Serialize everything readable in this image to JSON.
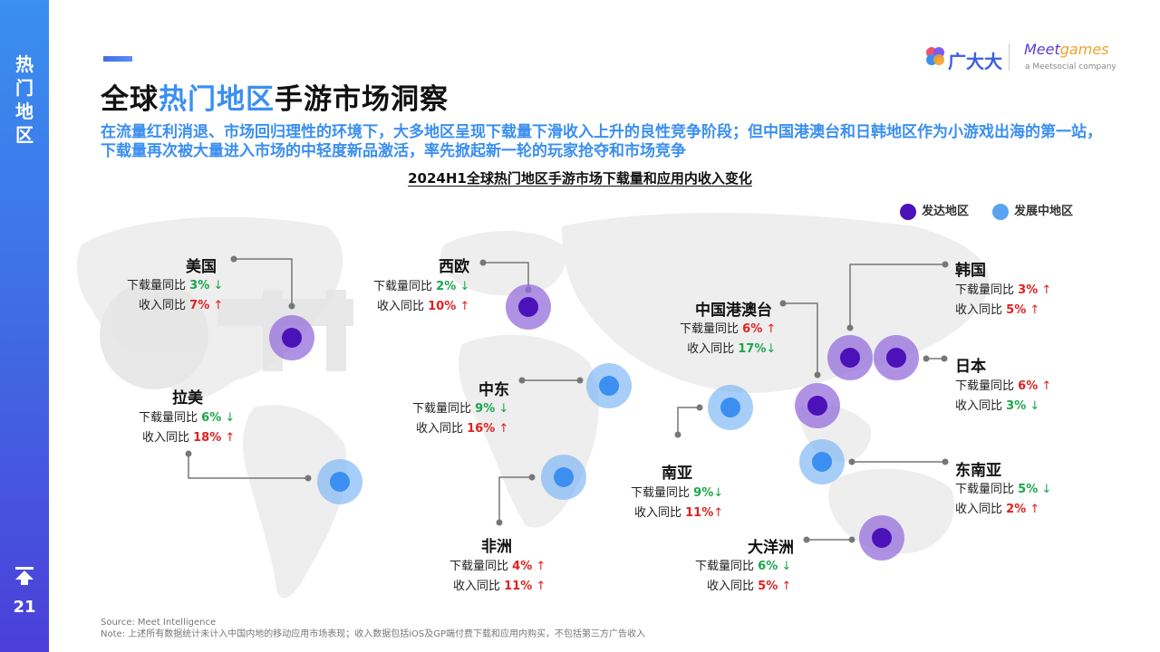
{
  "sidebar": {
    "title_chars": [
      "热",
      "门",
      "地",
      "区"
    ],
    "page_number": "21"
  },
  "header": {
    "title_part1": "全球",
    "title_highlight": "热门地区",
    "title_part2": "手游市场洞察",
    "subtitle": "在流量红利消退、市场回归理性的环境下，大多地区呈现下载量下滑收入上升的良性竞争阶段；但中国港澳台和日韩地区作为小游戏出海的第一站，下载量再次被大量进入市场的中轻度新品激活，率先掀起新一轮的玩家抢夺和市场竞争"
  },
  "logo": {
    "cn": "广大大",
    "meet_prefix": "Meet",
    "meet_suffix": "games",
    "sub": "a Meetsocial company"
  },
  "chart": {
    "title": "2024H1全球热门地区手游市场下载量和应用内收入变化"
  },
  "legend": {
    "developed": "发达地区",
    "developing": "发展中地区"
  },
  "colors": {
    "developed": "#4a12b8",
    "developing": "#3b8ff0",
    "up": "#e02020",
    "down": "#1aa64a"
  },
  "regions": {
    "usa": {
      "name": "美国",
      "dl_label": "下载量同比",
      "dl": "3%",
      "dl_arrow": "↓",
      "rev_label": "收入同比",
      "rev": "7%",
      "rev_arrow": "↑"
    },
    "weu": {
      "name": "西欧",
      "dl_label": "下载量同比",
      "dl": "2%",
      "dl_arrow": "↓",
      "rev_label": "收入同比",
      "rev": "10%",
      "rev_arrow": "↑"
    },
    "latam": {
      "name": "拉美",
      "dl_label": "下载量同比",
      "dl": "6%",
      "dl_arrow": "↓",
      "rev_label": "收入同比",
      "rev": "18%",
      "rev_arrow": "↑"
    },
    "me": {
      "name": "中东",
      "dl_label": "下载量同比",
      "dl": "9%",
      "dl_arrow": "↓",
      "rev_label": "收入同比",
      "rev": "16%",
      "rev_arrow": "↑"
    },
    "hmt": {
      "name": "中国港澳台",
      "dl_label": "下载量同比",
      "dl": "6%",
      "dl_arrow": "↑",
      "rev_label": "收入同比",
      "rev": "17%",
      "rev_arrow": "↓"
    },
    "kr": {
      "name": "韩国",
      "dl_label": "下载量同比",
      "dl": "3%",
      "dl_arrow": "↑",
      "rev_label": "收入同比",
      "rev": "5%",
      "rev_arrow": "↑"
    },
    "jp": {
      "name": "日本",
      "dl_label": "下载量同比",
      "dl": "6%",
      "dl_arrow": "↑",
      "rev_label": "收入同比",
      "rev": "3%",
      "rev_arrow": "↓"
    },
    "sa": {
      "name": "南亚",
      "dl_label": "下载量同比",
      "dl": "9%",
      "dl_arrow": "↓",
      "rev_label": "收入同比",
      "rev": "11%",
      "rev_arrow": "↑"
    },
    "africa": {
      "name": "非洲",
      "dl_label": "下载量同比",
      "dl": "4%",
      "dl_arrow": "↑",
      "rev_label": "收入同比",
      "rev": "11%",
      "rev_arrow": "↑"
    },
    "sea": {
      "name": "东南亚",
      "dl_label": "下载量同比",
      "dl": "5%",
      "dl_arrow": "↓",
      "rev_label": "收入同比",
      "rev": "2%",
      "rev_arrow": "↑"
    },
    "oce": {
      "name": "大洋洲",
      "dl_label": "下载量同比",
      "dl": "6%",
      "dl_arrow": "↓",
      "rev_label": "收入同比",
      "rev": "5%",
      "rev_arrow": "↑"
    }
  },
  "footer": {
    "source": "Source: Meet Intelligence",
    "note": "Note: 上述所有数据统计未计入中国内地的移动应用市场表现；收入数据包括iOS及GP端付费下载和应用内购买，不包括第三方广告收入"
  }
}
